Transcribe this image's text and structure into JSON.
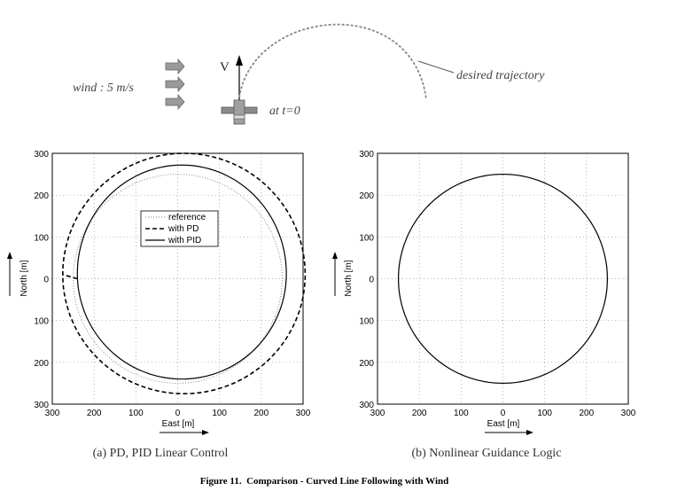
{
  "schematic": {
    "wind_label": "wind : 5 m/s",
    "velocity_label": "V",
    "start_label": "at t=0",
    "trajectory_label": "desired trajectory"
  },
  "chart_data": [
    {
      "type": "line",
      "caption": "(a) PD, PID Linear Control",
      "xlabel": "East [m]",
      "ylabel": "North [m]",
      "xlim": [
        300,
        -300
      ],
      "ylim": [
        -300,
        300
      ],
      "x_tick_labels": [
        "300",
        "200",
        "100",
        "0",
        "100",
        "200",
        "300"
      ],
      "y_tick_labels": [
        "300",
        "200",
        "100",
        "0",
        "100",
        "200",
        "300"
      ],
      "grid": true,
      "legend_position": "center-left",
      "series": [
        {
          "name": "reference",
          "style": "dotted",
          "shape": "circle",
          "center": [
            0,
            0
          ],
          "radius": 250
        },
        {
          "name": "with PD",
          "style": "dashed",
          "shape": "ellipse",
          "center": [
            -15,
            10
          ],
          "rx": 290,
          "ry_top": 290,
          "ry_bottom": 285
        },
        {
          "name": "with PID",
          "style": "solid",
          "shape": "ellipse",
          "center": [
            -10,
            12
          ],
          "rx": 250,
          "ry_top": 260,
          "ry_bottom": 252
        }
      ]
    },
    {
      "type": "line",
      "caption": "(b) Nonlinear Guidance Logic",
      "xlabel": "East [m]",
      "ylabel": "North [m]",
      "xlim": [
        300,
        -300
      ],
      "ylim": [
        -300,
        300
      ],
      "x_tick_labels": [
        "300",
        "200",
        "100",
        "0",
        "100",
        "200",
        "300"
      ],
      "y_tick_labels": [
        "300",
        "200",
        "100",
        "0",
        "100",
        "200",
        "300"
      ],
      "grid": true,
      "series": [
        {
          "name": "",
          "style": "dotted",
          "shape": "circle",
          "center": [
            0,
            0
          ],
          "radius": 250
        },
        {
          "name": "",
          "style": "solid",
          "shape": "circle",
          "center": [
            0,
            0
          ],
          "radius": 250,
          "start_angle_deg": 180
        }
      ]
    }
  ],
  "figure_caption": "Figure 11.  Comparison - Curved Line Following with Wind"
}
